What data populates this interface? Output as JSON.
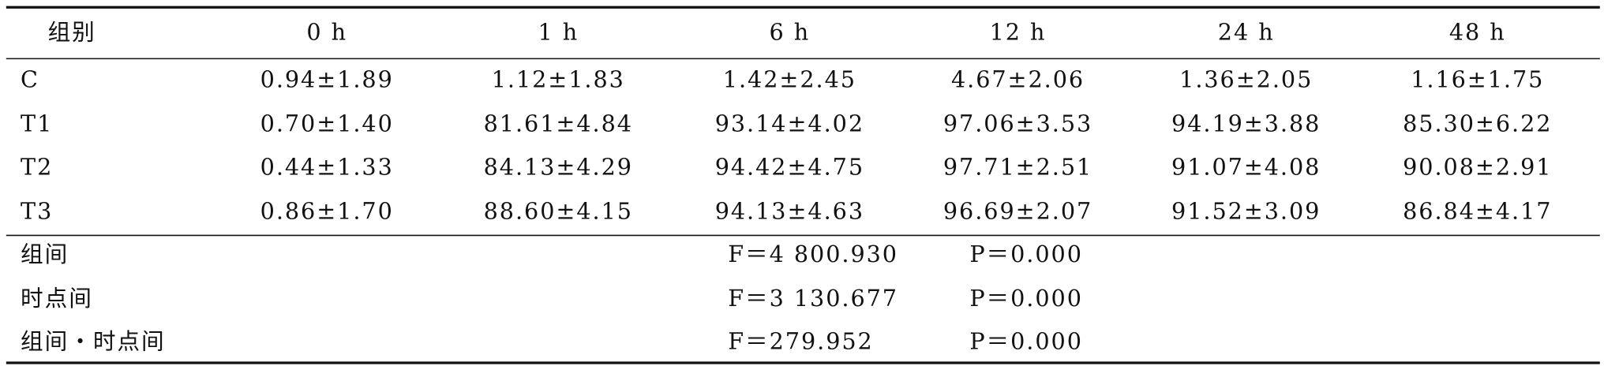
{
  "table": {
    "header": [
      "组别",
      "0 h",
      "1 h",
      "6 h",
      "12 h",
      "24 h",
      "48 h"
    ],
    "rows": [
      [
        "C",
        "0.94±1.89",
        "1.12±1.83",
        "1.42±2.45",
        "4.67±2.06",
        "1.36±2.05",
        "1.16±1.75"
      ],
      [
        "T1",
        "0.70±1.40",
        "81.61±4.84",
        "93.14±4.02",
        "97.06±3.53",
        "94.19±3.88",
        "85.30±6.22"
      ],
      [
        "T2",
        "0.44±1.33",
        "84.13±4.29",
        "94.42±4.75",
        "97.71±2.51",
        "91.07±4.08",
        "90.08±2.91"
      ],
      [
        "T3",
        "0.86±1.70",
        "88.60±4.15",
        "94.13±4.63",
        "96.69±2.07",
        "91.52±3.09",
        "86.84±4.17"
      ]
    ],
    "stats": [
      {
        "label": "组间",
        "f": "F＝4 800.930",
        "p": "P＝0.000"
      },
      {
        "label": "时点间",
        "f": "F＝3 130.677",
        "p": "P＝0.000"
      },
      {
        "label": "组间・时点间",
        "f": "F＝279.952",
        "p": "P＝0.000"
      }
    ]
  }
}
